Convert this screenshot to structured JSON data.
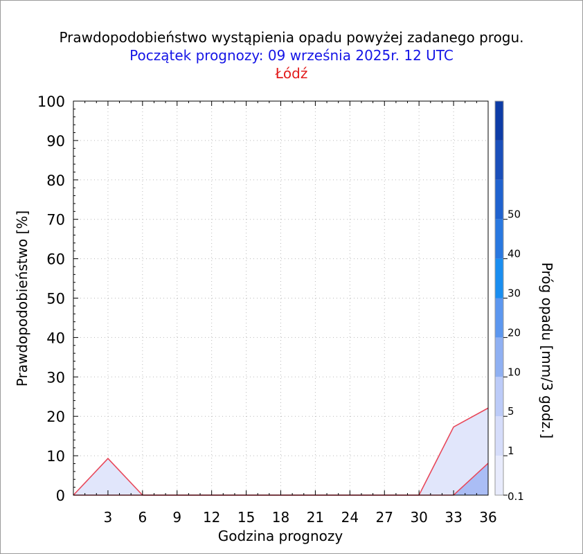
{
  "chart_data": {
    "type": "area",
    "title": "Prawdopodobieństwo wystąpienia opadu powyżej zadanego progu.",
    "subtitle": "Początek prognozy: 09 września 2025r. 12 UTC",
    "location": "Łódź",
    "xlabel": "Godzina prognozy",
    "ylabel": "Prawdopodobieństwo [%]",
    "colorbar_label": "Próg opadu [mm/3 godz.]",
    "xlim": [
      0,
      36
    ],
    "ylim": [
      0,
      100
    ],
    "x_ticks": [
      3,
      6,
      9,
      12,
      15,
      18,
      21,
      24,
      27,
      30,
      33,
      36
    ],
    "y_ticks": [
      0,
      10,
      20,
      30,
      40,
      50,
      60,
      70,
      80,
      90,
      100
    ],
    "grid": true,
    "x": [
      0,
      3,
      6,
      9,
      12,
      15,
      18,
      21,
      24,
      27,
      30,
      33,
      36
    ],
    "series": [
      {
        "threshold": "0.1",
        "color": "#e1e6fb",
        "values": [
          0,
          9.3,
          0,
          0,
          0,
          0,
          0,
          0,
          0,
          0,
          0,
          17.3,
          22.1
        ]
      },
      {
        "threshold": "1",
        "color": "#aabdf5",
        "values": [
          0,
          0,
          0,
          0,
          0,
          0,
          0,
          0,
          0,
          0,
          0,
          0,
          8.1
        ]
      }
    ],
    "colorbar": {
      "labels": [
        "0.1",
        "1",
        "5",
        "10",
        "20",
        "30",
        "40",
        "50"
      ],
      "colors": [
        "#e8ebfc",
        "#d6ddfa",
        "#bccbf8",
        "#8fb0f2",
        "#5c97ef",
        "#1a8ef0",
        "#2978e0",
        "#1f62cf",
        "#1a4fba",
        "#0d3ca6"
      ]
    }
  }
}
